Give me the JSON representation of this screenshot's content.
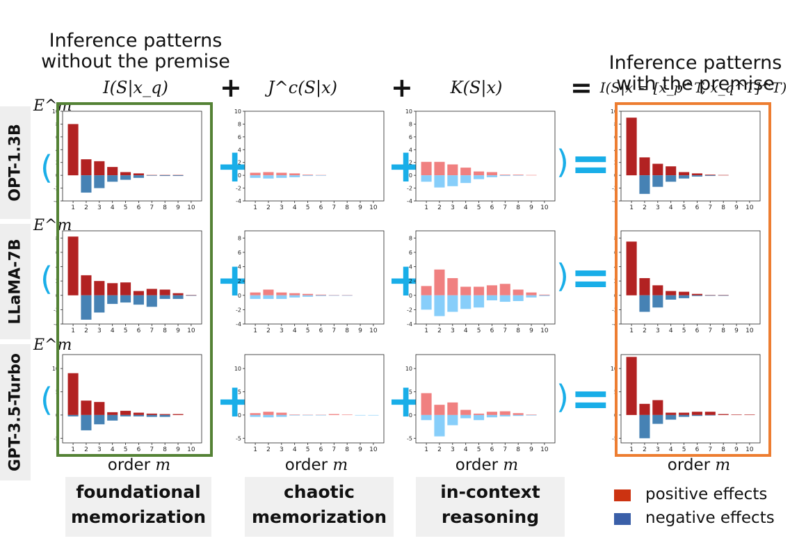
{
  "headers": {
    "left_title": "Inference patterns without the premise",
    "right_title": "Inference patterns with the premise",
    "col1_formula": "I(S|x_q)",
    "col2_formula": "J^c(S|x)",
    "col3_formula": "K(S|x)",
    "col4_formula": "I(S|x = [x_p^T, x_q^T]^T)",
    "op_plus": "+",
    "op_eq": "="
  },
  "rows": [
    {
      "model": "OPT-1.3B"
    },
    {
      "model": "LLaMA-7B"
    },
    {
      "model": "GPT-3.5-Turbo"
    }
  ],
  "y_axis_symbol": "E^m",
  "order_label_prefix": "order ",
  "order_label_var": "m",
  "categories": [
    {
      "line1": "foundational",
      "line2": "memorization"
    },
    {
      "line1": "chaotic",
      "line2": "memorization"
    },
    {
      "line1": "in-context",
      "line2": "reasoning"
    }
  ],
  "legend": [
    {
      "label": "positive effects",
      "color": "#cc3311"
    },
    {
      "label": "negative effects",
      "color": "#3a5fa8"
    }
  ],
  "colors": {
    "dark_pos": "#b22222",
    "dark_neg": "#4682b4",
    "light_pos": "#f08080",
    "light_neg": "#87cefa",
    "accent": "#19aee8",
    "green_box": "#548235",
    "orange_box": "#ed7d31"
  },
  "chart_data": [
    {
      "type": "bar",
      "title": "OPT-1.3B I(S|x_q)",
      "categories": [
        "1",
        "2",
        "3",
        "4",
        "5",
        "6",
        "7",
        "8",
        "9",
        "10"
      ],
      "yticks": [
        -4,
        -2,
        0,
        2,
        4,
        6,
        8,
        10
      ],
      "ylim": [
        -4,
        10
      ],
      "series": [
        {
          "name": "positive effects",
          "values": [
            8,
            2.5,
            2.2,
            1.3,
            0.5,
            0.3,
            0.05,
            0.05,
            0.05,
            0
          ]
        },
        {
          "name": "negative effects",
          "values": [
            0,
            -2.7,
            -2,
            -1,
            -0.7,
            -0.4,
            -0.05,
            -0.1,
            -0.1,
            0
          ]
        }
      ]
    },
    {
      "type": "bar",
      "title": "OPT-1.3B J^c(S|x)",
      "categories": [
        "1",
        "2",
        "3",
        "4",
        "5",
        "6",
        "7",
        "8",
        "9",
        "10"
      ],
      "yticks": [
        -4,
        -2,
        0,
        2,
        4,
        6,
        8,
        10
      ],
      "ylim": [
        -4,
        10
      ],
      "series": [
        {
          "name": "positive effects",
          "values": [
            0.4,
            0.5,
            0.4,
            0.3,
            0.1,
            0.05,
            0,
            0,
            0,
            0
          ]
        },
        {
          "name": "negative effects",
          "values": [
            -0.4,
            -0.5,
            -0.4,
            -0.3,
            -0.1,
            -0.05,
            0,
            0,
            0,
            0
          ]
        }
      ]
    },
    {
      "type": "bar",
      "title": "OPT-1.3B K(S|x)",
      "categories": [
        "1",
        "2",
        "3",
        "4",
        "5",
        "6",
        "7",
        "8",
        "9",
        "10"
      ],
      "yticks": [
        -4,
        -2,
        0,
        2,
        4,
        6,
        8,
        10
      ],
      "ylim": [
        -4,
        10
      ],
      "series": [
        {
          "name": "positive effects",
          "values": [
            2.1,
            2.1,
            1.7,
            1.2,
            0.6,
            0.5,
            0.1,
            0.1,
            0.05,
            0
          ]
        },
        {
          "name": "negative effects",
          "values": [
            -1,
            -1.9,
            -1.7,
            -1.2,
            -0.6,
            -0.3,
            -0.1,
            -0.05,
            0,
            0
          ]
        }
      ]
    },
    {
      "type": "bar",
      "title": "OPT-1.3B I(S|x=[x_p,x_q])",
      "categories": [
        "1",
        "2",
        "3",
        "4",
        "5",
        "6",
        "7",
        "8",
        "9",
        "10"
      ],
      "yticks": [
        -4,
        -2,
        0,
        2,
        4,
        6,
        8,
        10
      ],
      "ylim": [
        -4,
        10
      ],
      "series": [
        {
          "name": "positive effects",
          "values": [
            9,
            2.8,
            1.8,
            1.4,
            0.5,
            0.3,
            0.1,
            0.05,
            0,
            0
          ]
        },
        {
          "name": "negative effects",
          "values": [
            0,
            -2.9,
            -1.8,
            -1,
            -0.5,
            -0.2,
            -0.1,
            0,
            0,
            0
          ]
        }
      ]
    },
    {
      "type": "bar",
      "title": "LLaMA-7B I(S|x_q)",
      "categories": [
        "1",
        "2",
        "3",
        "4",
        "5",
        "6",
        "7",
        "8",
        "9",
        "10"
      ],
      "yticks": [
        -4,
        -2,
        0,
        2,
        4,
        6,
        8
      ],
      "ylim": [
        -4,
        9
      ],
      "series": [
        {
          "name": "positive effects",
          "values": [
            8.2,
            2.8,
            2,
            1.7,
            1.8,
            0.6,
            0.9,
            0.8,
            0.3,
            0.05
          ]
        },
        {
          "name": "negative effects",
          "values": [
            0,
            -3.4,
            -2.4,
            -1.2,
            -1,
            -1.3,
            -1.6,
            -0.5,
            -0.5,
            -0.05
          ]
        }
      ]
    },
    {
      "type": "bar",
      "title": "LLaMA-7B J^c(S|x)",
      "categories": [
        "1",
        "2",
        "3",
        "4",
        "5",
        "6",
        "7",
        "8",
        "9",
        "10"
      ],
      "yticks": [
        -4,
        -2,
        0,
        2,
        4,
        6,
        8
      ],
      "ylim": [
        -4,
        9
      ],
      "series": [
        {
          "name": "positive effects",
          "values": [
            0.4,
            0.8,
            0.4,
            0.3,
            0.2,
            0.1,
            0.05,
            0.05,
            0,
            0
          ]
        },
        {
          "name": "negative effects",
          "values": [
            -0.5,
            -0.5,
            -0.5,
            -0.3,
            -0.2,
            -0.1,
            -0.05,
            -0.05,
            0,
            0
          ]
        }
      ]
    },
    {
      "type": "bar",
      "title": "LLaMA-7B K(S|x)",
      "categories": [
        "1",
        "2",
        "3",
        "4",
        "5",
        "6",
        "7",
        "8",
        "9",
        "10"
      ],
      "yticks": [
        -4,
        -2,
        0,
        2,
        4,
        6,
        8
      ],
      "ylim": [
        -4,
        9
      ],
      "series": [
        {
          "name": "positive effects",
          "values": [
            1.3,
            3.6,
            2.4,
            1.2,
            1.2,
            1.4,
            1.6,
            0.8,
            0.4,
            0.1
          ]
        },
        {
          "name": "negative effects",
          "values": [
            -2,
            -2.9,
            -2.3,
            -1.9,
            -1.7,
            -0.7,
            -0.9,
            -0.8,
            -0.3,
            -0.1
          ]
        }
      ]
    },
    {
      "type": "bar",
      "title": "LLaMA-7B I(S|x=[x_p,x_q])",
      "categories": [
        "1",
        "2",
        "3",
        "4",
        "5",
        "6",
        "7",
        "8",
        "9",
        "10"
      ],
      "yticks": [
        -4,
        -2,
        0,
        2,
        4,
        6,
        8
      ],
      "ylim": [
        -4,
        9
      ],
      "series": [
        {
          "name": "positive effects",
          "values": [
            7.5,
            2.4,
            1.4,
            0.6,
            0.5,
            0.2,
            0.05,
            0.05,
            0,
            0
          ]
        },
        {
          "name": "negative effects",
          "values": [
            0,
            -2.3,
            -1.7,
            -0.6,
            -0.4,
            -0.1,
            -0.05,
            -0.05,
            0,
            0
          ]
        }
      ]
    },
    {
      "type": "bar",
      "title": "GPT-3.5-Turbo I(S|x_q)",
      "categories": [
        "1",
        "2",
        "3",
        "4",
        "5",
        "6",
        "7",
        "8",
        "9",
        "10"
      ],
      "yticks": [
        -5,
        0,
        5,
        10
      ],
      "ylim": [
        -6,
        13
      ],
      "series": [
        {
          "name": "positive effects",
          "values": [
            9,
            3.1,
            2.8,
            0.6,
            0.9,
            0.5,
            0.3,
            0.2,
            0.2,
            0
          ]
        },
        {
          "name": "negative effects",
          "values": [
            -0.3,
            -3.3,
            -2,
            -1.2,
            -0.3,
            -0.3,
            -0.4,
            -0.4,
            0,
            0
          ]
        }
      ]
    },
    {
      "type": "bar",
      "title": "GPT-3.5-Turbo J^c(S|x)",
      "categories": [
        "1",
        "2",
        "3",
        "4",
        "5",
        "6",
        "7",
        "8",
        "9",
        "10"
      ],
      "yticks": [
        -5,
        0,
        5,
        10
      ],
      "ylim": [
        -6,
        13
      ],
      "series": [
        {
          "name": "positive effects",
          "values": [
            0.4,
            0.7,
            0.5,
            0.1,
            0.05,
            0.05,
            0.2,
            0.1,
            0,
            0
          ]
        },
        {
          "name": "negative effects",
          "values": [
            -0.4,
            -0.5,
            -0.4,
            -0.1,
            -0.05,
            -0.05,
            0,
            0,
            -0.1,
            -0.1
          ]
        }
      ]
    },
    {
      "type": "bar",
      "title": "GPT-3.5-Turbo K(S|x)",
      "categories": [
        "1",
        "2",
        "3",
        "4",
        "5",
        "6",
        "7",
        "8",
        "9",
        "10"
      ],
      "yticks": [
        -5,
        0,
        5,
        10
      ],
      "ylim": [
        -6,
        13
      ],
      "series": [
        {
          "name": "positive effects",
          "values": [
            4.7,
            2.2,
            2.7,
            1.1,
            0.3,
            0.7,
            0.8,
            0.4,
            0.1,
            0
          ]
        },
        {
          "name": "negative effects",
          "values": [
            -1.1,
            -4.6,
            -2.2,
            -0.7,
            -1.1,
            -0.5,
            -0.3,
            -0.2,
            -0.1,
            0
          ]
        }
      ]
    },
    {
      "type": "bar",
      "title": "GPT-3.5-Turbo I(S|x=[x_p,x_q])",
      "categories": [
        "1",
        "2",
        "3",
        "4",
        "5",
        "6",
        "7",
        "8",
        "9",
        "10"
      ],
      "yticks": [
        -5,
        0,
        5,
        10
      ],
      "ylim": [
        -6,
        13
      ],
      "series": [
        {
          "name": "positive effects",
          "values": [
            12.5,
            2.4,
            3.2,
            0.5,
            0.5,
            0.7,
            0.7,
            0.2,
            0.1,
            0.1
          ]
        },
        {
          "name": "negative effects",
          "values": [
            0,
            -5,
            -1.9,
            -1,
            -0.4,
            -0.2,
            -0.1,
            0,
            0,
            0
          ]
        }
      ]
    }
  ]
}
